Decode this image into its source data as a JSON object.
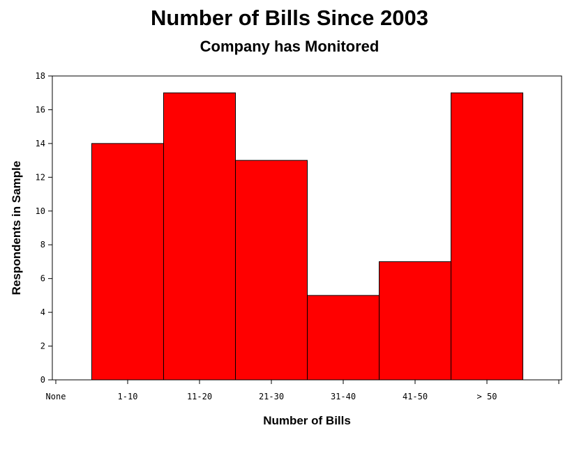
{
  "chart_data": {
    "type": "bar",
    "title": "Number of Bills Since 2003",
    "subtitle": "Company has Monitored",
    "xlabel": "Number of Bills",
    "ylabel": "Respondents in Sample",
    "x_ticks": [
      "None",
      "1-10",
      "11-20",
      "21-30",
      "31-40",
      "41-50",
      "> 50"
    ],
    "categories": [
      "1-10",
      "11-20",
      "21-30",
      "31-40",
      "41-50",
      "> 50"
    ],
    "values": [
      14,
      17,
      13,
      5,
      7,
      17
    ],
    "ylim": [
      0,
      18
    ],
    "y_ticks": [
      0,
      2,
      4,
      6,
      8,
      10,
      12,
      14,
      16,
      18
    ],
    "bar_color": "#ff0000",
    "grid": false
  }
}
